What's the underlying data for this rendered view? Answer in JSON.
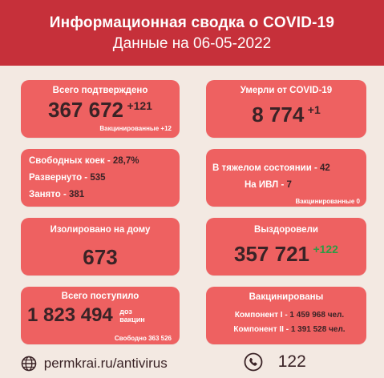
{
  "header": {
    "title": "Информационная сводка о COVID-19",
    "subtitle": "Данные на 06-05-2022"
  },
  "confirmed": {
    "label": "Всего подтверждено",
    "value": "367 672",
    "delta": "+121",
    "note": "Вакцинированные +12"
  },
  "deaths": {
    "label": "Умерли от COVID-19",
    "value": "8 774",
    "delta": "+1"
  },
  "beds": {
    "free_label": "Свободных коек - ",
    "free_value": "28,7%",
    "deployed_label": "Развернуто - ",
    "deployed_value": "535",
    "occupied_label": "Занято - ",
    "occupied_value": "381"
  },
  "severe": {
    "severe_label": "В тяжелом состоянии - ",
    "severe_value": "42",
    "ivl_label": "На ИВЛ - ",
    "ivl_value": "7",
    "note": "Вакцинированные 0"
  },
  "isolated": {
    "label": "Изолировано на дому",
    "value": "673"
  },
  "recovered": {
    "label": "Выздоровели",
    "value": "357 721",
    "delta": "+122"
  },
  "vaccine_arrived": {
    "label": "Всего поступило",
    "value": "1 823 494",
    "unit_line1": "доз",
    "unit_line2": "вакцин",
    "note": "Свободно 363 526"
  },
  "vaccinated": {
    "label": "Вакцинированы",
    "comp1_label": "Компонент I - ",
    "comp1_value": "1 459 968 чел.",
    "comp2_label": "Компонент II - ",
    "comp2_value": "1 391 528 чел."
  },
  "footer": {
    "website": "permkrai.ru/antivirus",
    "phone": "122",
    "globe_icon": "globe-icon",
    "phone_icon": "phone-icon"
  },
  "colors": {
    "header": "#c6303a",
    "card": "#ee6161",
    "background": "#f3e9e2",
    "value_dark": "#3a2326",
    "accent_green": "#2f9a44"
  }
}
